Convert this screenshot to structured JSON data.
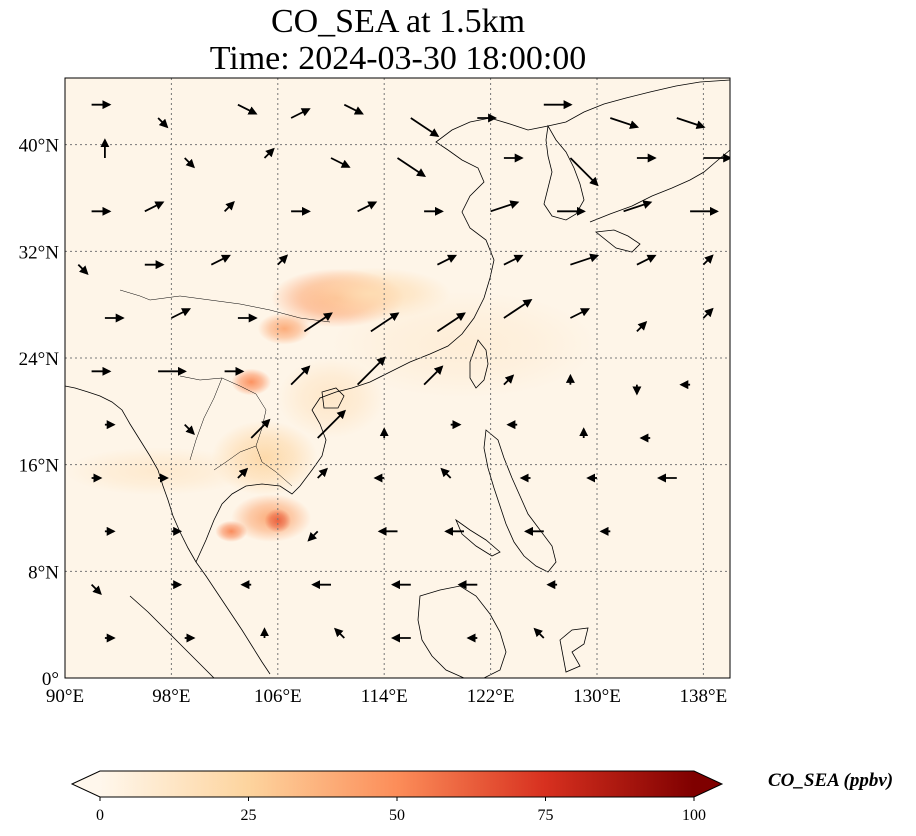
{
  "title": {
    "line1": "CO_SEA at 1.5km",
    "line2": "Time: 2024-03-30 18:00:00"
  },
  "map": {
    "extent": {
      "lon": [
        90,
        140
      ],
      "lat": [
        0,
        45
      ]
    },
    "lon_ticks": [
      {
        "value": 90,
        "label": "90°E"
      },
      {
        "value": 98,
        "label": "98°E"
      },
      {
        "value": 106,
        "label": "106°E"
      },
      {
        "value": 114,
        "label": "114°E"
      },
      {
        "value": 122,
        "label": "122°E"
      },
      {
        "value": 130,
        "label": "130°E"
      },
      {
        "value": 138,
        "label": "138°E"
      }
    ],
    "lat_ticks": [
      {
        "value": 0,
        "label": "0°"
      },
      {
        "value": 8,
        "label": "8°N"
      },
      {
        "value": 16,
        "label": "16°N"
      },
      {
        "value": 24,
        "label": "24°N"
      },
      {
        "value": 32,
        "label": "32°N"
      },
      {
        "value": 40,
        "label": "40°N"
      }
    ],
    "gridlines": true,
    "colors": {
      "background": "#fef5e8",
      "coast": "#000000",
      "grid": "#777777",
      "wind": "#000000"
    },
    "co_field": [
      {
        "lon": 110.5,
        "lat": 28.5,
        "rlon": 5.0,
        "rlat": 2.2,
        "value": 45
      },
      {
        "lon": 106.5,
        "lat": 26.2,
        "rlon": 2.0,
        "rlat": 1.2,
        "value": 40
      },
      {
        "lon": 113.0,
        "lat": 28.8,
        "rlon": 6.0,
        "rlat": 2.0,
        "value": 18
      },
      {
        "lon": 104.0,
        "lat": 22.2,
        "rlon": 1.5,
        "rlat": 1.0,
        "value": 50
      },
      {
        "lon": 105.5,
        "lat": 12.0,
        "rlon": 3.0,
        "rlat": 1.8,
        "value": 40
      },
      {
        "lon": 106.0,
        "lat": 11.8,
        "rlon": 1.0,
        "rlat": 0.9,
        "value": 62
      },
      {
        "lon": 102.5,
        "lat": 11.0,
        "rlon": 1.2,
        "rlat": 0.8,
        "value": 52
      },
      {
        "lon": 105.0,
        "lat": 16.5,
        "rlon": 4.0,
        "rlat": 2.8,
        "value": 22
      },
      {
        "lon": 97.0,
        "lat": 15.5,
        "rlon": 7.0,
        "rlat": 1.8,
        "value": 10
      },
      {
        "lon": 110.0,
        "lat": 21.0,
        "rlon": 4.0,
        "rlat": 3.0,
        "value": 12
      },
      {
        "lon": 120.0,
        "lat": 25.0,
        "rlon": 10.0,
        "rlat": 4.0,
        "value": 7
      }
    ],
    "wind_vectors": [
      {
        "lon": 92,
        "lat": 43,
        "u": 2,
        "v": 0
      },
      {
        "lon": 97,
        "lat": 42,
        "u": 1,
        "v": -1
      },
      {
        "lon": 103,
        "lat": 43,
        "u": 2,
        "v": -1
      },
      {
        "lon": 107,
        "lat": 42,
        "u": 2,
        "v": 1
      },
      {
        "lon": 111,
        "lat": 43,
        "u": 2,
        "v": -1
      },
      {
        "lon": 116,
        "lat": 42,
        "u": 3,
        "v": -2
      },
      {
        "lon": 121,
        "lat": 42,
        "u": 2,
        "v": 0
      },
      {
        "lon": 126,
        "lat": 43,
        "u": 3,
        "v": 0
      },
      {
        "lon": 131,
        "lat": 42,
        "u": 3,
        "v": -1
      },
      {
        "lon": 136,
        "lat": 42,
        "u": 3,
        "v": -1
      },
      {
        "lon": 93,
        "lat": 39,
        "u": 0,
        "v": 2
      },
      {
        "lon": 99,
        "lat": 39,
        "u": 1,
        "v": -1
      },
      {
        "lon": 105,
        "lat": 39,
        "u": 1,
        "v": 1
      },
      {
        "lon": 110,
        "lat": 39,
        "u": 2,
        "v": -1
      },
      {
        "lon": 115,
        "lat": 39,
        "u": 3,
        "v": -2
      },
      {
        "lon": 123,
        "lat": 39,
        "u": 2,
        "v": 0
      },
      {
        "lon": 128,
        "lat": 39,
        "u": 3,
        "v": -3
      },
      {
        "lon": 133,
        "lat": 39,
        "u": 2,
        "v": 0
      },
      {
        "lon": 138,
        "lat": 39,
        "u": 3,
        "v": 0
      },
      {
        "lon": 92,
        "lat": 35,
        "u": 2,
        "v": 0
      },
      {
        "lon": 96,
        "lat": 35,
        "u": 2,
        "v": 1
      },
      {
        "lon": 102,
        "lat": 35,
        "u": 1,
        "v": 1
      },
      {
        "lon": 107,
        "lat": 35,
        "u": 2,
        "v": 0
      },
      {
        "lon": 112,
        "lat": 35,
        "u": 2,
        "v": 1
      },
      {
        "lon": 117,
        "lat": 35,
        "u": 2,
        "v": 0
      },
      {
        "lon": 122,
        "lat": 35,
        "u": 3,
        "v": 1
      },
      {
        "lon": 127,
        "lat": 35,
        "u": 3,
        "v": 0
      },
      {
        "lon": 132,
        "lat": 35,
        "u": 3,
        "v": 1
      },
      {
        "lon": 137,
        "lat": 35,
        "u": 3,
        "v": 0
      },
      {
        "lon": 91,
        "lat": 31,
        "u": 1,
        "v": -1
      },
      {
        "lon": 96,
        "lat": 31,
        "u": 2,
        "v": 0
      },
      {
        "lon": 101,
        "lat": 31,
        "u": 2,
        "v": 1
      },
      {
        "lon": 106,
        "lat": 31,
        "u": 1,
        "v": 1
      },
      {
        "lon": 118,
        "lat": 31,
        "u": 2,
        "v": 1
      },
      {
        "lon": 123,
        "lat": 31,
        "u": 2,
        "v": 1
      },
      {
        "lon": 128,
        "lat": 31,
        "u": 3,
        "v": 1
      },
      {
        "lon": 133,
        "lat": 31,
        "u": 2,
        "v": 1
      },
      {
        "lon": 138,
        "lat": 31,
        "u": 1,
        "v": 1
      },
      {
        "lon": 93,
        "lat": 27,
        "u": 2,
        "v": 0
      },
      {
        "lon": 98,
        "lat": 27,
        "u": 2,
        "v": 1
      },
      {
        "lon": 103,
        "lat": 27,
        "u": 2,
        "v": 0
      },
      {
        "lon": 108,
        "lat": 26,
        "u": 3,
        "v": 2
      },
      {
        "lon": 113,
        "lat": 26,
        "u": 3,
        "v": 2
      },
      {
        "lon": 118,
        "lat": 26,
        "u": 3,
        "v": 2
      },
      {
        "lon": 123,
        "lat": 27,
        "u": 3,
        "v": 2
      },
      {
        "lon": 128,
        "lat": 27,
        "u": 2,
        "v": 1
      },
      {
        "lon": 133,
        "lat": 26,
        "u": 1,
        "v": 1
      },
      {
        "lon": 138,
        "lat": 27,
        "u": 1,
        "v": 1
      },
      {
        "lon": 92,
        "lat": 23,
        "u": 2,
        "v": 0
      },
      {
        "lon": 97,
        "lat": 23,
        "u": 3,
        "v": 0
      },
      {
        "lon": 102,
        "lat": 23,
        "u": 2,
        "v": 0
      },
      {
        "lon": 107,
        "lat": 22,
        "u": 2,
        "v": 2
      },
      {
        "lon": 112,
        "lat": 22,
        "u": 3,
        "v": 3
      },
      {
        "lon": 117,
        "lat": 22,
        "u": 2,
        "v": 2
      },
      {
        "lon": 123,
        "lat": 22,
        "u": 1,
        "v": 1
      },
      {
        "lon": 128,
        "lat": 22,
        "u": 0,
        "v": 1
      },
      {
        "lon": 133,
        "lat": 22,
        "u": 0,
        "v": -1
      },
      {
        "lon": 137,
        "lat": 22,
        "u": -1,
        "v": 0
      },
      {
        "lon": 93,
        "lat": 19,
        "u": 1,
        "v": 0
      },
      {
        "lon": 99,
        "lat": 19,
        "u": 1,
        "v": -1
      },
      {
        "lon": 104,
        "lat": 18,
        "u": 2,
        "v": 2
      },
      {
        "lon": 109,
        "lat": 18,
        "u": 3,
        "v": 3
      },
      {
        "lon": 114,
        "lat": 18,
        "u": 0,
        "v": 1
      },
      {
        "lon": 119,
        "lat": 19,
        "u": 1,
        "v": 0
      },
      {
        "lon": 124,
        "lat": 19,
        "u": -1,
        "v": 0
      },
      {
        "lon": 129,
        "lat": 18,
        "u": 0,
        "v": 1
      },
      {
        "lon": 134,
        "lat": 18,
        "u": -1,
        "v": 0
      },
      {
        "lon": 92,
        "lat": 15,
        "u": 1,
        "v": 0
      },
      {
        "lon": 97,
        "lat": 15,
        "u": 1,
        "v": 0
      },
      {
        "lon": 103,
        "lat": 15,
        "u": 1,
        "v": 1
      },
      {
        "lon": 109,
        "lat": 15,
        "u": 1,
        "v": 1
      },
      {
        "lon": 114,
        "lat": 15,
        "u": -1,
        "v": 0
      },
      {
        "lon": 119,
        "lat": 15,
        "u": -1,
        "v": 1
      },
      {
        "lon": 125,
        "lat": 15,
        "u": -1,
        "v": 0
      },
      {
        "lon": 130,
        "lat": 15,
        "u": -1,
        "v": 0
      },
      {
        "lon": 136,
        "lat": 15,
        "u": -2,
        "v": 0
      },
      {
        "lon": 93,
        "lat": 11,
        "u": 1,
        "v": 0
      },
      {
        "lon": 98,
        "lat": 11,
        "u": 1,
        "v": 0
      },
      {
        "lon": 109,
        "lat": 11,
        "u": -1,
        "v": -1
      },
      {
        "lon": 115,
        "lat": 11,
        "u": -2,
        "v": 0
      },
      {
        "lon": 120,
        "lat": 11,
        "u": -2,
        "v": 0
      },
      {
        "lon": 126,
        "lat": 11,
        "u": -2,
        "v": 0
      },
      {
        "lon": 131,
        "lat": 11,
        "u": -1,
        "v": 0
      },
      {
        "lon": 92,
        "lat": 7,
        "u": 1,
        "v": -1
      },
      {
        "lon": 98,
        "lat": 7,
        "u": 1,
        "v": 0
      },
      {
        "lon": 104,
        "lat": 7,
        "u": -1,
        "v": 0
      },
      {
        "lon": 110,
        "lat": 7,
        "u": -2,
        "v": 0
      },
      {
        "lon": 116,
        "lat": 7,
        "u": -2,
        "v": 0
      },
      {
        "lon": 121,
        "lat": 7,
        "u": -2,
        "v": 0
      },
      {
        "lon": 127,
        "lat": 7,
        "u": -1,
        "v": 0
      },
      {
        "lon": 93,
        "lat": 3,
        "u": 1,
        "v": 0
      },
      {
        "lon": 99,
        "lat": 3,
        "u": 1,
        "v": 0
      },
      {
        "lon": 105,
        "lat": 3,
        "u": 0,
        "v": 1
      },
      {
        "lon": 111,
        "lat": 3,
        "u": -1,
        "v": 1
      },
      {
        "lon": 116,
        "lat": 3,
        "u": -2,
        "v": 0
      },
      {
        "lon": 121,
        "lat": 3,
        "u": -1,
        "v": 0
      },
      {
        "lon": 126,
        "lat": 3,
        "u": -1,
        "v": 1
      }
    ]
  },
  "colorbar": {
    "label": "CO_SEA (ppbv)",
    "min": 0,
    "max": 100,
    "ticks": [
      {
        "value": 0,
        "label": "0"
      },
      {
        "value": 25,
        "label": "25"
      },
      {
        "value": 50,
        "label": "50"
      },
      {
        "value": 75,
        "label": "75"
      },
      {
        "value": 100,
        "label": "100"
      }
    ],
    "colors": [
      "#fff7ec",
      "#fdd49e",
      "#fc8d59",
      "#d7301f",
      "#7f0000"
    ]
  }
}
